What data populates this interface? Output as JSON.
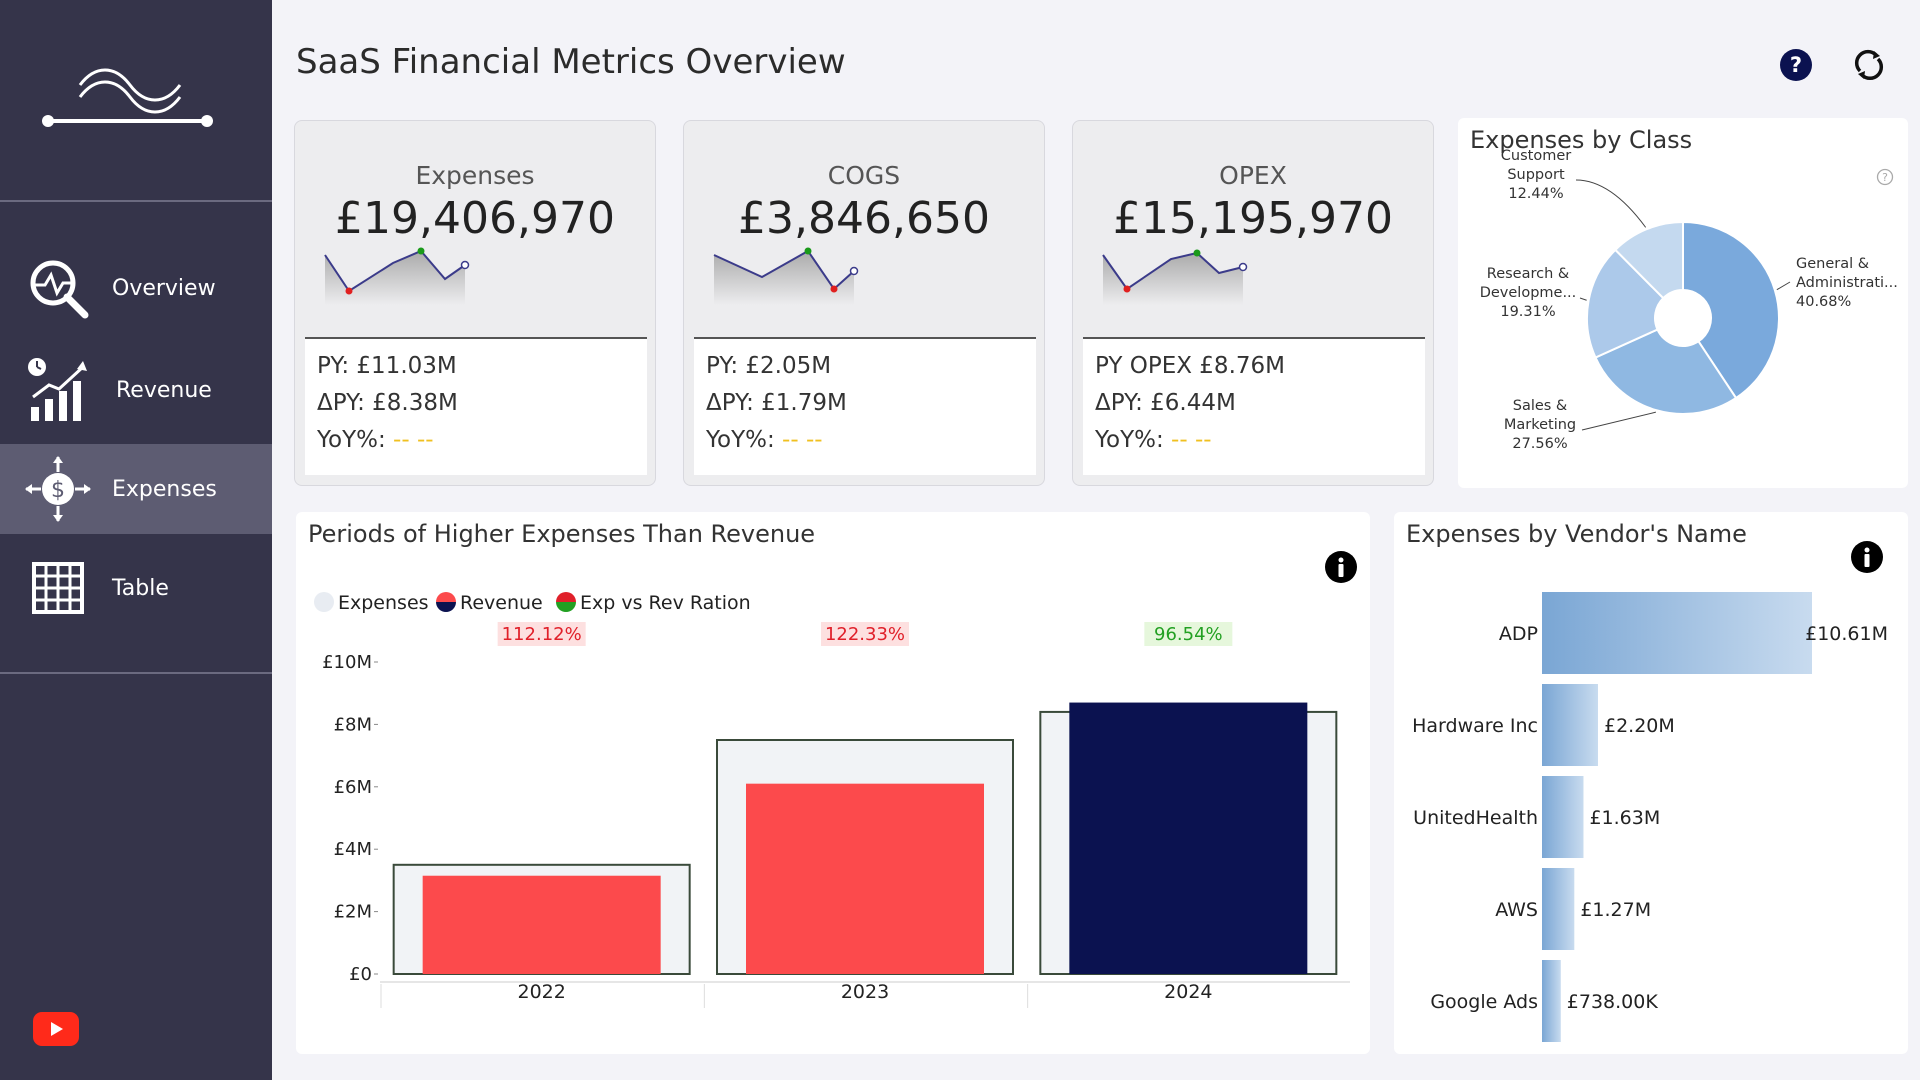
{
  "sidebar": {
    "items": [
      {
        "label": "Overview",
        "icon": "overview-search-chart-icon"
      },
      {
        "label": "Revenue",
        "icon": "revenue-growth-chart-icon"
      },
      {
        "label": "Expenses",
        "icon": "expenses-dollar-move-icon",
        "active": true
      },
      {
        "label": "Table",
        "icon": "table-grid-icon"
      }
    ]
  },
  "header": {
    "title": "SaaS Financial Metrics Overview",
    "help_icon": "help-icon",
    "refresh_icon": "refresh-icon"
  },
  "kpis": [
    {
      "title": "Expenses",
      "value": "£19,406,970",
      "py": "PY: £11.03M",
      "delta": "ΔPY: £8.38M",
      "yoy_label": "YoY%:",
      "yoy_value": "-- --"
    },
    {
      "title": "COGS",
      "value": "£3,846,650",
      "py": "PY: £2.05M",
      "delta": "ΔPY: £1.79M",
      "yoy_label": "YoY%:",
      "yoy_value": "-- --"
    },
    {
      "title": "OPEX",
      "value": "£15,195,970",
      "py": "PY OPEX £8.76M",
      "delta": "ΔPY: £6.44M",
      "yoy_label": "YoY%:",
      "yoy_value": "-- --"
    }
  ],
  "colors": {
    "sidebar_bg": "#35344a",
    "sidebar_active": "#5d5c72",
    "expenses_box": "#f1f3f6",
    "revenue_red": "#fc4a4c",
    "revenue_navy": "#0b1250",
    "ratio_red": "#e0202a",
    "ratio_green": "#22a022",
    "donut_blue": "#7aa9dc"
  },
  "chart_data": [
    {
      "type": "pie",
      "title": "Expenses by Class",
      "labels": [
        "General & Administrati...",
        "Sales & Marketing",
        "Research & Developme...",
        "Customer Support"
      ],
      "values": [
        40.68,
        27.56,
        19.31,
        12.44
      ],
      "value_labels": [
        "40.68%",
        "27.56%",
        "19.31%",
        "12.44%"
      ],
      "hole": true
    },
    {
      "type": "bar",
      "title": "Periods of Higher Expenses Than Revenue",
      "legend": [
        "Expenses",
        "Revenue",
        "Exp vs Rev Ration"
      ],
      "legend_position": "top-left",
      "categories": [
        "2022",
        "2023",
        "2024"
      ],
      "series": [
        {
          "name": "Expenses",
          "values": [
            3.5,
            7.5,
            8.4
          ]
        },
        {
          "name": "Revenue",
          "values": [
            3.15,
            6.1,
            8.7
          ]
        }
      ],
      "ratio_labels": [
        "112.12%",
        "122.33%",
        "96.54%"
      ],
      "ylim": [
        0,
        10
      ],
      "y_ticks": [
        "£0",
        "£2M",
        "£4M",
        "£6M",
        "£8M",
        "£10M"
      ]
    },
    {
      "type": "bar",
      "orientation": "horizontal",
      "title": "Expenses by Vendor's Name",
      "categories": [
        "ADP",
        "Hardware Inc",
        "UnitedHealth",
        "AWS",
        "Google Ads"
      ],
      "values": [
        10.61,
        2.2,
        1.63,
        1.27,
        0.738
      ],
      "value_labels": [
        "£10.61M",
        "£2.20M",
        "£1.63M",
        "£1.27M",
        "£738.00K"
      ]
    }
  ]
}
